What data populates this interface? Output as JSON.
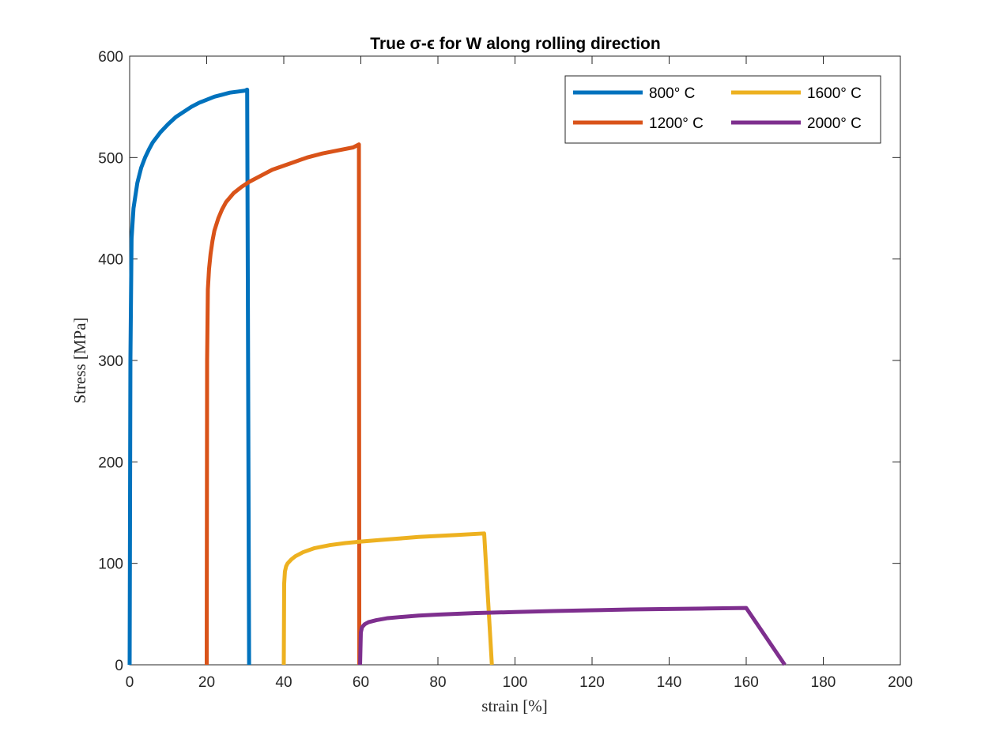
{
  "chart_data": {
    "type": "line",
    "title": "True  σ-ϵ for W along rolling direction",
    "xlabel": "strain [%]",
    "ylabel": "Stress [MPa]",
    "xlim": [
      0,
      200
    ],
    "ylim": [
      0,
      600
    ],
    "xticks": [
      0,
      20,
      40,
      60,
      80,
      100,
      120,
      140,
      160,
      180,
      200
    ],
    "yticks": [
      0,
      100,
      200,
      300,
      400,
      500,
      600
    ],
    "grid": false,
    "legend_position": "top-right",
    "legend_columns": 2,
    "series": [
      {
        "name": "800° C",
        "color": "#0072BD",
        "x": [
          0,
          0.2,
          0.5,
          1,
          2,
          3,
          4,
          5,
          6,
          8,
          10,
          12,
          14,
          16,
          18,
          20,
          22,
          24,
          26,
          28,
          30,
          30.5,
          31
        ],
        "y": [
          0,
          300,
          420,
          450,
          475,
          490,
          500,
          508,
          515,
          525,
          533,
          540,
          545,
          550,
          554,
          557,
          560,
          562,
          564,
          565,
          566,
          567,
          0
        ]
      },
      {
        "name": "1200° C",
        "color": "#D95319",
        "x": [
          20,
          20.1,
          20.3,
          20.6,
          21,
          21.5,
          22,
          23,
          24,
          25,
          27,
          29,
          31,
          34,
          37,
          40,
          43,
          46,
          50,
          54,
          58,
          59.5,
          59.6
        ],
        "y": [
          0,
          300,
          370,
          390,
          405,
          418,
          428,
          440,
          449,
          456,
          465,
          471,
          476,
          482,
          488,
          492,
          496,
          500,
          504,
          507,
          510,
          513,
          0
        ]
      },
      {
        "name": "1600° C",
        "color": "#EDB120",
        "x": [
          40,
          40.1,
          40.3,
          40.6,
          41,
          42,
          43,
          45,
          48,
          52,
          56,
          60,
          65,
          70,
          75,
          80,
          85,
          92,
          94
        ],
        "y": [
          0,
          80,
          92,
          97,
          100,
          104,
          107,
          111,
          115,
          118,
          120,
          121.5,
          123,
          124.5,
          126,
          127,
          128,
          129.5,
          0
        ]
      },
      {
        "name": "2000° C",
        "color": "#7E2F8E",
        "x": [
          59.8,
          60,
          60.3,
          61,
          62,
          64,
          67,
          70,
          75,
          80,
          90,
          100,
          110,
          120,
          130,
          140,
          150,
          160,
          170
        ],
        "y": [
          0,
          32,
          37,
          40,
          42,
          44,
          46,
          47,
          48.5,
          49.5,
          51,
          52,
          53,
          53.8,
          54.5,
          55,
          55.5,
          56,
          0
        ]
      }
    ]
  }
}
